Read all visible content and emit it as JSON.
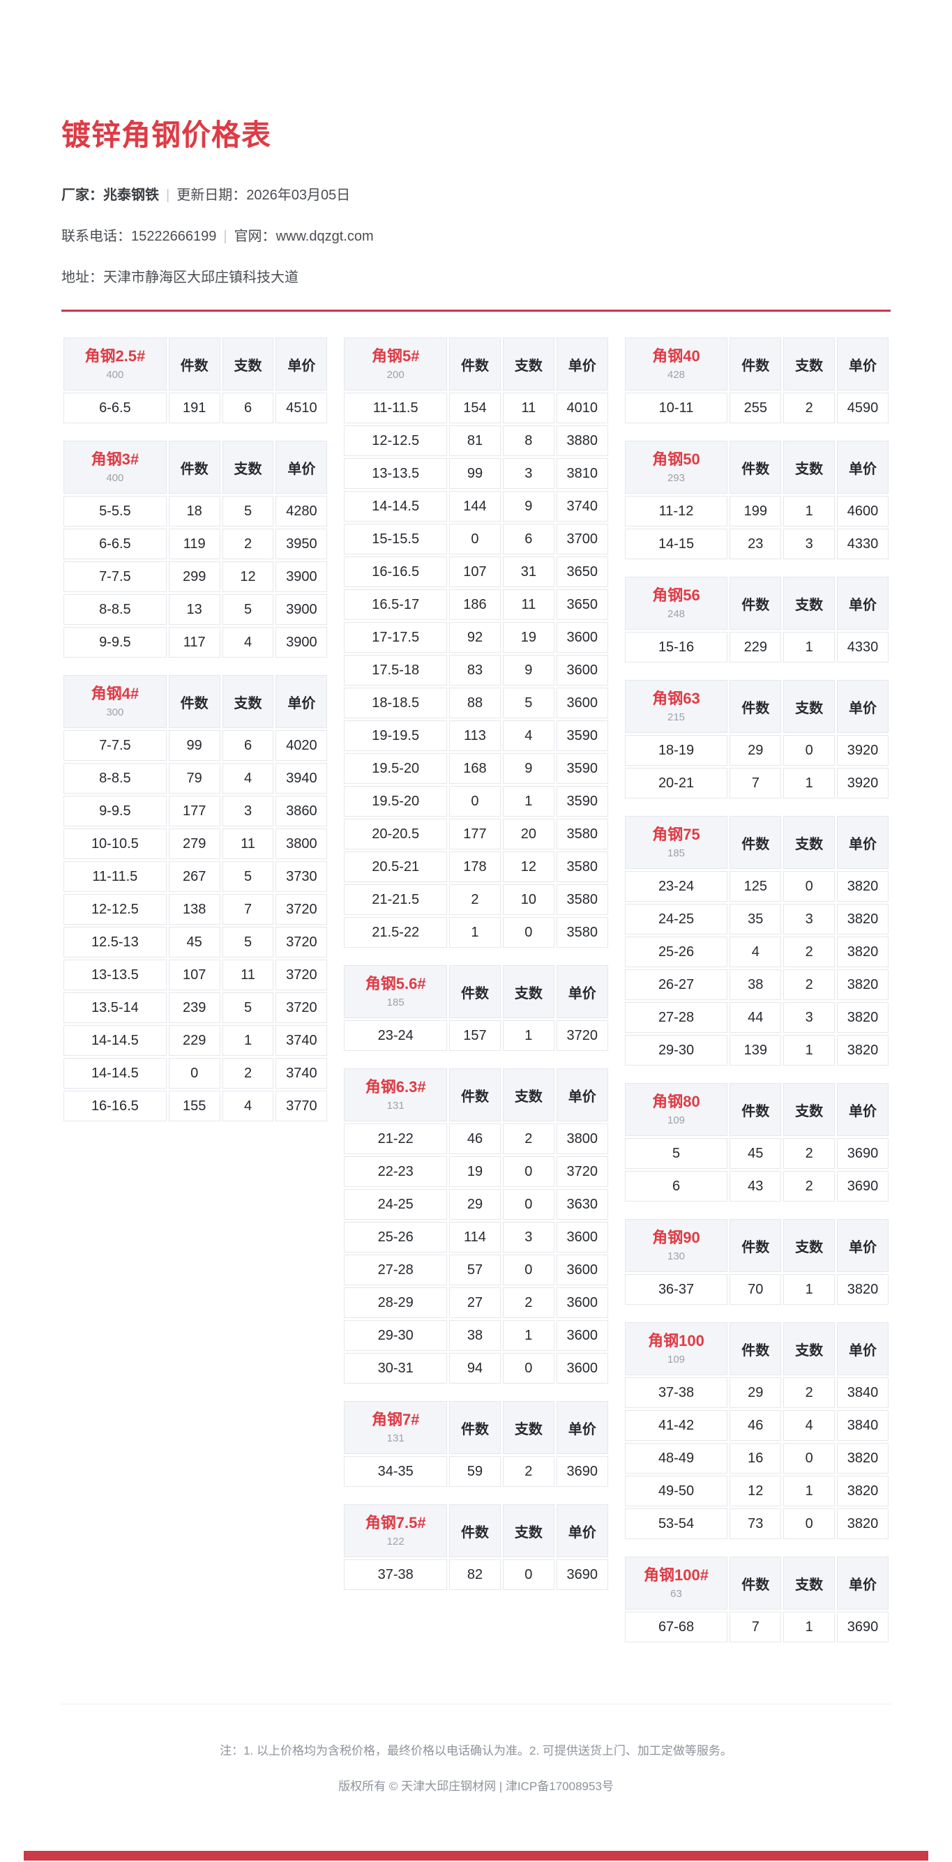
{
  "header": {
    "title": "镀锌角钢价格表",
    "maker_label": "厂家：",
    "maker": "兆泰钢铁",
    "sep": "|",
    "update_label": "更新日期：",
    "update_date": "2026年03月05日",
    "phone_label": "联系电话：",
    "phone": "15222666199",
    "site_label": "官网：",
    "site": "www.dqzgt.com",
    "addr_label": "地址：",
    "addr": "天津市静海区大邱庄镇科技大道"
  },
  "table_headers": [
    "件数",
    "支数",
    "单价"
  ],
  "columns": [
    [
      {
        "name": "角钢2.5#",
        "subtitle": "400",
        "rows": [
          [
            "6-6.5",
            "191",
            "6",
            "4510"
          ]
        ]
      },
      {
        "name": "角钢3#",
        "subtitle": "400",
        "rows": [
          [
            "5-5.5",
            "18",
            "5",
            "4280"
          ],
          [
            "6-6.5",
            "119",
            "2",
            "3950"
          ],
          [
            "7-7.5",
            "299",
            "12",
            "3900"
          ],
          [
            "8-8.5",
            "13",
            "5",
            "3900"
          ],
          [
            "9-9.5",
            "117",
            "4",
            "3900"
          ]
        ]
      },
      {
        "name": "角钢4#",
        "subtitle": "300",
        "rows": [
          [
            "7-7.5",
            "99",
            "6",
            "4020"
          ],
          [
            "8-8.5",
            "79",
            "4",
            "3940"
          ],
          [
            "9-9.5",
            "177",
            "3",
            "3860"
          ],
          [
            "10-10.5",
            "279",
            "11",
            "3800"
          ],
          [
            "11-11.5",
            "267",
            "5",
            "3730"
          ],
          [
            "12-12.5",
            "138",
            "7",
            "3720"
          ],
          [
            "12.5-13",
            "45",
            "5",
            "3720"
          ],
          [
            "13-13.5",
            "107",
            "11",
            "3720"
          ],
          [
            "13.5-14",
            "239",
            "5",
            "3720"
          ],
          [
            "14-14.5",
            "229",
            "1",
            "3740"
          ],
          [
            "14-14.5",
            "0",
            "2",
            "3740"
          ],
          [
            "16-16.5",
            "155",
            "4",
            "3770"
          ]
        ]
      }
    ],
    [
      {
        "name": "角钢5#",
        "subtitle": "200",
        "rows": [
          [
            "11-11.5",
            "154",
            "11",
            "4010"
          ],
          [
            "12-12.5",
            "81",
            "8",
            "3880"
          ],
          [
            "13-13.5",
            "99",
            "3",
            "3810"
          ],
          [
            "14-14.5",
            "144",
            "9",
            "3740"
          ],
          [
            "15-15.5",
            "0",
            "6",
            "3700"
          ],
          [
            "16-16.5",
            "107",
            "31",
            "3650"
          ],
          [
            "16.5-17",
            "186",
            "11",
            "3650"
          ],
          [
            "17-17.5",
            "92",
            "19",
            "3600"
          ],
          [
            "17.5-18",
            "83",
            "9",
            "3600"
          ],
          [
            "18-18.5",
            "88",
            "5",
            "3600"
          ],
          [
            "19-19.5",
            "113",
            "4",
            "3590"
          ],
          [
            "19.5-20",
            "168",
            "9",
            "3590"
          ],
          [
            "19.5-20",
            "0",
            "1",
            "3590"
          ],
          [
            "20-20.5",
            "177",
            "20",
            "3580"
          ],
          [
            "20.5-21",
            "178",
            "12",
            "3580"
          ],
          [
            "21-21.5",
            "2",
            "10",
            "3580"
          ],
          [
            "21.5-22",
            "1",
            "0",
            "3580"
          ]
        ]
      },
      {
        "name": "角钢5.6#",
        "subtitle": "185",
        "rows": [
          [
            "23-24",
            "157",
            "1",
            "3720"
          ]
        ]
      },
      {
        "name": "角钢6.3#",
        "subtitle": "131",
        "rows": [
          [
            "21-22",
            "46",
            "2",
            "3800"
          ],
          [
            "22-23",
            "19",
            "0",
            "3720"
          ],
          [
            "24-25",
            "29",
            "0",
            "3630"
          ],
          [
            "25-26",
            "114",
            "3",
            "3600"
          ],
          [
            "27-28",
            "57",
            "0",
            "3600"
          ],
          [
            "28-29",
            "27",
            "2",
            "3600"
          ],
          [
            "29-30",
            "38",
            "1",
            "3600"
          ],
          [
            "30-31",
            "94",
            "0",
            "3600"
          ]
        ]
      },
      {
        "name": "角钢7#",
        "subtitle": "131",
        "rows": [
          [
            "34-35",
            "59",
            "2",
            "3690"
          ]
        ]
      },
      {
        "name": "角钢7.5#",
        "subtitle": "122",
        "rows": [
          [
            "37-38",
            "82",
            "0",
            "3690"
          ]
        ]
      }
    ],
    [
      {
        "name": "角钢40",
        "subtitle": "428",
        "rows": [
          [
            "10-11",
            "255",
            "2",
            "4590"
          ]
        ]
      },
      {
        "name": "角钢50",
        "subtitle": "293",
        "rows": [
          [
            "11-12",
            "199",
            "1",
            "4600"
          ],
          [
            "14-15",
            "23",
            "3",
            "4330"
          ]
        ]
      },
      {
        "name": "角钢56",
        "subtitle": "248",
        "rows": [
          [
            "15-16",
            "229",
            "1",
            "4330"
          ]
        ]
      },
      {
        "name": "角钢63",
        "subtitle": "215",
        "rows": [
          [
            "18-19",
            "29",
            "0",
            "3920"
          ],
          [
            "20-21",
            "7",
            "1",
            "3920"
          ]
        ]
      },
      {
        "name": "角钢75",
        "subtitle": "185",
        "rows": [
          [
            "23-24",
            "125",
            "0",
            "3820"
          ],
          [
            "24-25",
            "35",
            "3",
            "3820"
          ],
          [
            "25-26",
            "4",
            "2",
            "3820"
          ],
          [
            "26-27",
            "38",
            "2",
            "3820"
          ],
          [
            "27-28",
            "44",
            "3",
            "3820"
          ],
          [
            "29-30",
            "139",
            "1",
            "3820"
          ]
        ]
      },
      {
        "name": "角钢80",
        "subtitle": "109",
        "rows": [
          [
            "5",
            "45",
            "2",
            "3690"
          ],
          [
            "6",
            "43",
            "2",
            "3690"
          ]
        ]
      },
      {
        "name": "角钢90",
        "subtitle": "130",
        "rows": [
          [
            "36-37",
            "70",
            "1",
            "3820"
          ]
        ]
      },
      {
        "name": "角钢100",
        "subtitle": "109",
        "rows": [
          [
            "37-38",
            "29",
            "2",
            "3840"
          ],
          [
            "41-42",
            "46",
            "4",
            "3840"
          ],
          [
            "48-49",
            "16",
            "0",
            "3820"
          ],
          [
            "49-50",
            "12",
            "1",
            "3820"
          ],
          [
            "53-54",
            "73",
            "0",
            "3820"
          ]
        ]
      },
      {
        "name": "角钢100#",
        "subtitle": "63",
        "rows": [
          [
            "67-68",
            "7",
            "1",
            "3690"
          ]
        ]
      }
    ]
  ],
  "footer": {
    "note": "注：1. 以上价格均为含税价格，最终价格以电话确认为准。2. 可提供送货上门、加工定做等服务。",
    "copyright": "版权所有 © 天津大邱庄钢材网 | 津ICP备17008953号"
  },
  "colors": {
    "accent_red": "#df3b45",
    "rule_red": "#c9374a",
    "price_blue": "#2779c8",
    "spec_tan": "#a9783f",
    "header_bg": "#f4f5f8",
    "border": "#e4e7eb"
  }
}
